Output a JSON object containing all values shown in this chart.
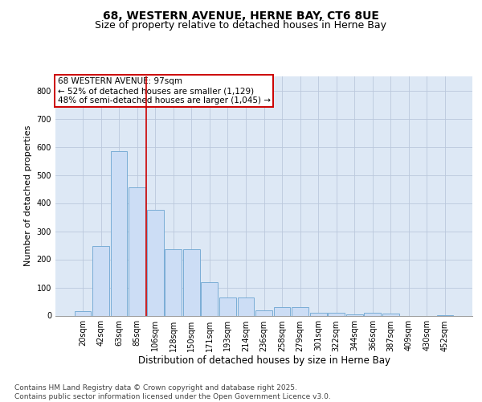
{
  "title_line1": "68, WESTERN AVENUE, HERNE BAY, CT6 8UE",
  "title_line2": "Size of property relative to detached houses in Herne Bay",
  "xlabel": "Distribution of detached houses by size in Herne Bay",
  "ylabel": "Number of detached properties",
  "categories": [
    "20sqm",
    "42sqm",
    "63sqm",
    "85sqm",
    "106sqm",
    "128sqm",
    "150sqm",
    "171sqm",
    "193sqm",
    "214sqm",
    "236sqm",
    "258sqm",
    "279sqm",
    "301sqm",
    "322sqm",
    "344sqm",
    "366sqm",
    "387sqm",
    "409sqm",
    "430sqm",
    "452sqm"
  ],
  "values": [
    15,
    248,
    585,
    455,
    375,
    235,
    235,
    120,
    65,
    65,
    18,
    30,
    30,
    10,
    10,
    5,
    10,
    8,
    0,
    0,
    2
  ],
  "bar_color": "#ccddf5",
  "bar_edge_color": "#7aadd6",
  "bar_linewidth": 0.7,
  "vline_color": "#cc0000",
  "vline_linewidth": 1.2,
  "vline_x": 3.5,
  "annotation_text": "68 WESTERN AVENUE: 97sqm\n← 52% of detached houses are smaller (1,129)\n48% of semi-detached houses are larger (1,045) →",
  "annotation_box_color": "#cc0000",
  "ylim": [
    0,
    850
  ],
  "yticks": [
    0,
    100,
    200,
    300,
    400,
    500,
    600,
    700,
    800
  ],
  "grid_color": "#bbc8dc",
  "bg_color": "#dde8f5",
  "footnote": "Contains HM Land Registry data © Crown copyright and database right 2025.\nContains public sector information licensed under the Open Government Licence v3.0.",
  "title_fontsize": 10,
  "subtitle_fontsize": 9,
  "xlabel_fontsize": 8.5,
  "ylabel_fontsize": 8,
  "tick_fontsize": 7,
  "annotation_fontsize": 7.5,
  "footnote_fontsize": 6.5
}
